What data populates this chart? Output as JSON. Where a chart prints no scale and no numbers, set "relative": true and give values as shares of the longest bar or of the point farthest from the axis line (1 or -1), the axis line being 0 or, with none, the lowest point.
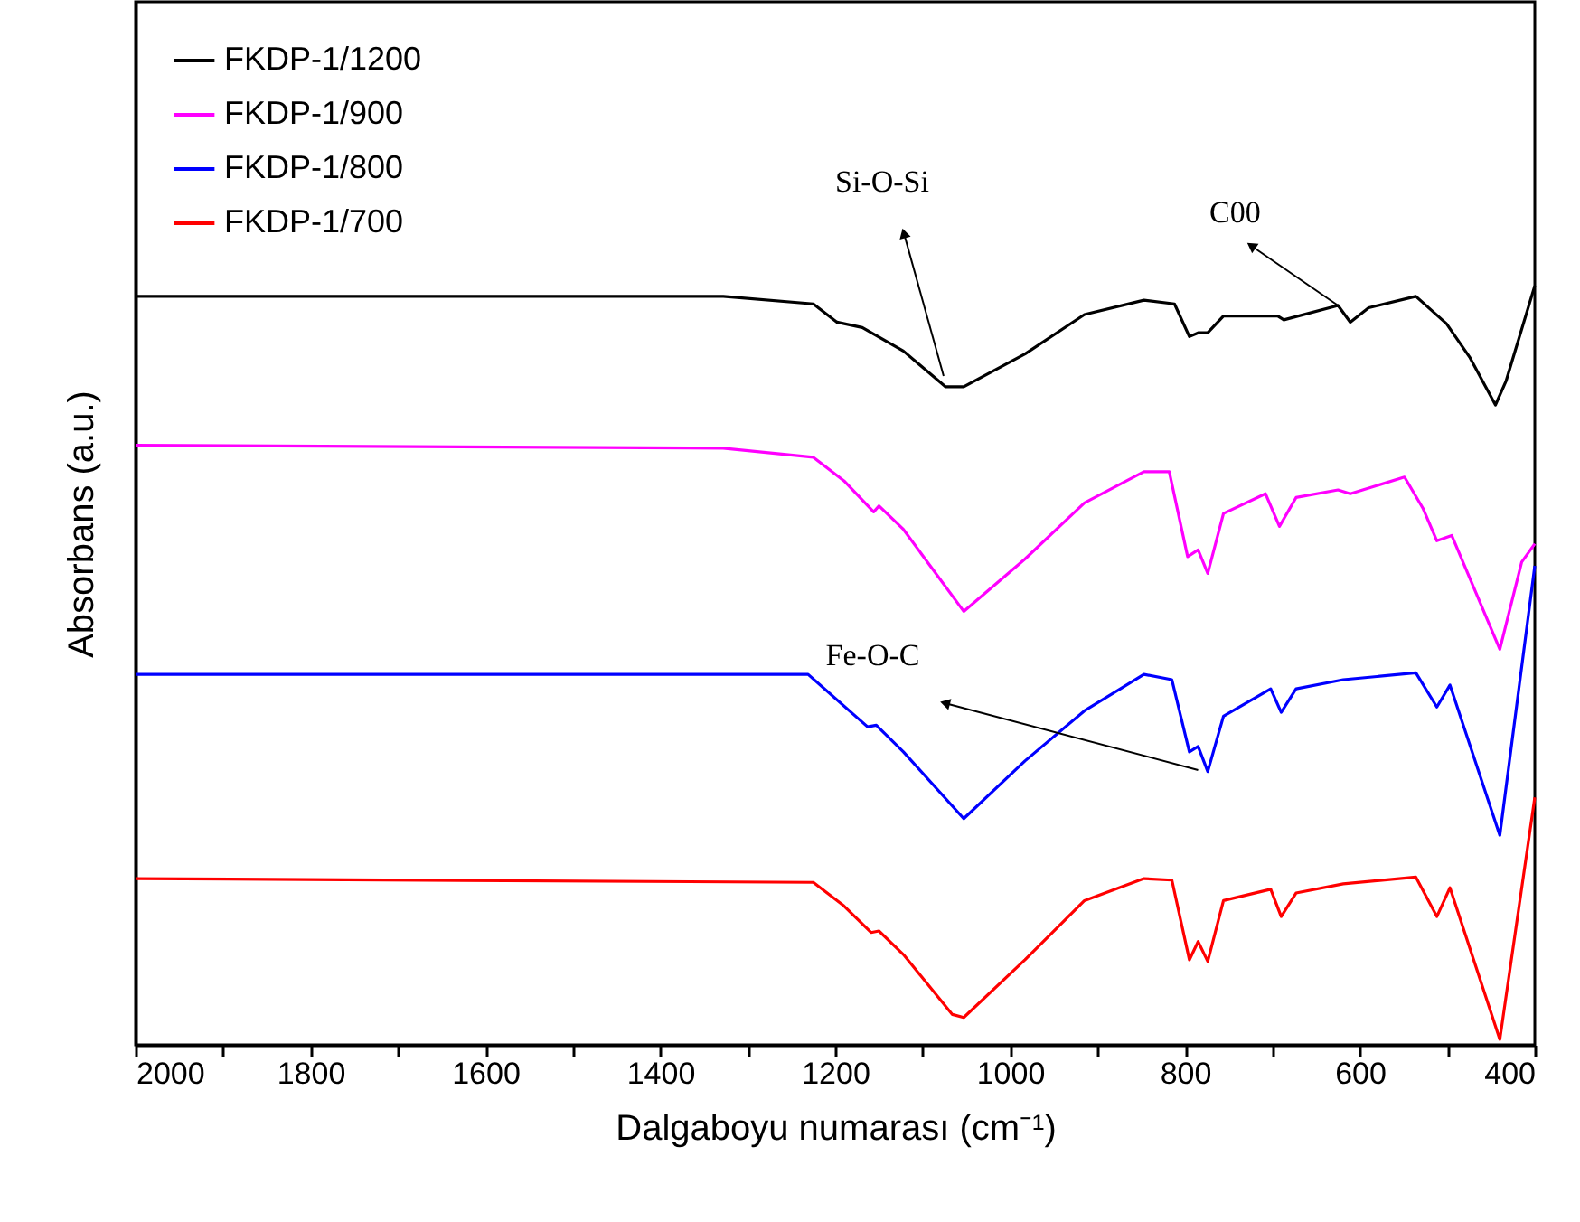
{
  "chart_data": {
    "type": "line",
    "relative": true,
    "xlabel": "Dalgaboyu numarası (cm⁻¹)",
    "ylabel": "Absorbans (a.u.)",
    "xlim": [
      2000,
      400
    ],
    "xticks": [
      2000,
      {
        "value": 1900,
        "label": null
      },
      1800,
      {
        "value": 1700,
        "label": null
      },
      1600,
      {
        "value": 1500,
        "label": null
      },
      1400,
      {
        "value": 1300,
        "label": null
      },
      1200,
      {
        "value": 1100,
        "label": null
      },
      1000,
      {
        "value": 900,
        "label": null
      },
      800,
      {
        "value": 700,
        "label": null
      },
      600,
      {
        "value": 500,
        "label": null
      },
      400
    ],
    "tick_labels": "x",
    "legend": "top left",
    "series": [
      {
        "name": "FKDP-1/1200",
        "color": "#000000",
        "x": [
          2000,
          1328,
          1225,
          1198,
          1169,
          1122,
          1074,
          1053,
          983,
          915,
          847,
          812,
          795,
          785,
          774,
          756,
          694,
          687,
          625,
          611,
          590,
          536,
          501,
          474,
          445,
          433,
          400
        ],
        "values": [
          0.986,
          0.986,
          0.976,
          0.952,
          0.945,
          0.914,
          0.867,
          0.867,
          0.91,
          0.962,
          0.981,
          0.976,
          0.933,
          0.938,
          0.938,
          0.96,
          0.96,
          0.955,
          0.974,
          0.952,
          0.971,
          0.986,
          0.95,
          0.905,
          0.843,
          0.874,
          1.0
        ]
      },
      {
        "name": "FKDP-1/900",
        "color": "#ff00ff",
        "x": [
          2000,
          1328,
          1225,
          1190,
          1156,
          1150,
          1122,
          1053,
          983,
          915,
          847,
          818,
          797,
          785,
          774,
          756,
          708,
          692,
          673,
          625,
          611,
          549,
          528,
          512,
          495,
          440,
          415,
          400
        ],
        "values": [
          0.79,
          0.786,
          0.774,
          0.743,
          0.702,
          0.71,
          0.679,
          0.571,
          0.64,
          0.714,
          0.755,
          0.755,
          0.643,
          0.652,
          0.621,
          0.7,
          0.726,
          0.683,
          0.721,
          0.731,
          0.726,
          0.748,
          0.707,
          0.664,
          0.671,
          0.521,
          0.636,
          0.66
        ]
      },
      {
        "name": "FKDP-1/800",
        "color": "#0000ff",
        "x": [
          2000,
          1231,
          1163,
          1153,
          1122,
          1053,
          983,
          915,
          847,
          815,
          795,
          785,
          774,
          756,
          702,
          690,
          673,
          619,
          536,
          512,
          497,
          440,
          400
        ],
        "values": [
          0.488,
          0.488,
          0.419,
          0.421,
          0.386,
          0.298,
          0.374,
          0.44,
          0.488,
          0.481,
          0.386,
          0.393,
          0.36,
          0.433,
          0.469,
          0.438,
          0.469,
          0.481,
          0.49,
          0.445,
          0.474,
          0.276,
          0.631
        ]
      },
      {
        "name": "FKDP-1/700",
        "color": "#ff0000",
        "x": [
          2000,
          1225,
          1190,
          1159,
          1150,
          1122,
          1066,
          1053,
          983,
          915,
          847,
          815,
          795,
          785,
          774,
          756,
          702,
          690,
          673,
          619,
          536,
          512,
          497,
          440,
          400
        ],
        "values": [
          0.219,
          0.214,
          0.183,
          0.148,
          0.15,
          0.119,
          0.04,
          0.036,
          0.112,
          0.19,
          0.219,
          0.217,
          0.112,
          0.136,
          0.11,
          0.19,
          0.205,
          0.169,
          0.2,
          0.212,
          0.221,
          0.169,
          0.207,
          0.007,
          0.326
        ]
      }
    ],
    "annotations": [
      {
        "text": "Si-O-Si",
        "x": 1076,
        "y": 0.881
      },
      {
        "text": "C00",
        "x": 625,
        "y": 0.974
      },
      {
        "text": "Fe-O-C",
        "x": 785,
        "y": 0.362
      }
    ]
  }
}
